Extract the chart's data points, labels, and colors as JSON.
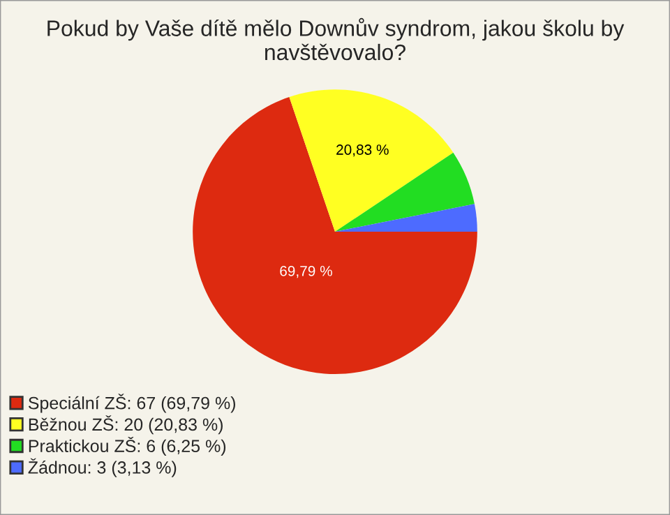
{
  "chart_data": {
    "type": "pie",
    "title": "Pokud by Vaše dítě mělo Downův syndrom, jakou školu by navštěvovalo?",
    "categories": [
      "Speciální ZŠ: 67 (69,79 %)",
      "Běžnou ZŠ: 20 (20,83 %)",
      "Praktickou ZŠ: 6 (6,25 %)",
      "Žádnou: 3 (3,13 %)"
    ],
    "values": [
      69.79,
      20.83,
      6.25,
      3.13
    ],
    "colors": [
      "#dd2a10",
      "#ffff22",
      "#22dd22",
      "#4d6bff"
    ],
    "value_labels": [
      "69,79 %",
      "20,83 %",
      null,
      null
    ],
    "legend": "bottom left"
  }
}
